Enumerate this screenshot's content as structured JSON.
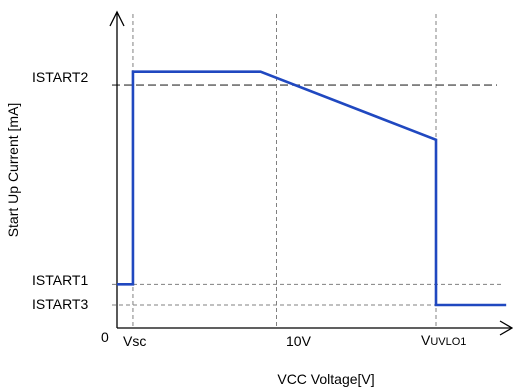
{
  "chart_data": {
    "type": "line",
    "xlabel": "VCC Voltage[V]",
    "ylabel": "Start Up Current [mA]",
    "x_ticks": [
      {
        "key": "origin",
        "label": "0"
      },
      {
        "key": "vsc",
        "label": "Vsc"
      },
      {
        "key": "v10",
        "label": "10V"
      },
      {
        "key": "vuvlo",
        "main": "V",
        "sub": "UVLO1"
      }
    ],
    "y_ticks": [
      {
        "key": "istart2",
        "label": "ISTART2"
      },
      {
        "key": "istart1",
        "label": "ISTART1"
      },
      {
        "key": "istart3",
        "label": "ISTART3"
      }
    ],
    "x_positions": {
      "vsc": 0.05,
      "v10": 0.5,
      "vuvlo": 1.0,
      "end": 1.22
    },
    "y_levels": {
      "istart1": 0.085,
      "istart2": 0.905,
      "istart3": 0.0,
      "peak": 0.96,
      "at_vuvlo": 0.68
    },
    "series": [
      {
        "color": "#2048c0",
        "points": [
          {
            "x": 0.0,
            "y": 0.085
          },
          {
            "x": 0.05,
            "y": 0.085
          },
          {
            "x": 0.05,
            "y": 0.96
          },
          {
            "x": 0.45,
            "y": 0.96
          },
          {
            "x": 1.0,
            "y": 0.68
          },
          {
            "x": 1.0,
            "y": 0.0
          },
          {
            "x": 1.22,
            "y": 0.0
          }
        ]
      }
    ],
    "grid": "dashed reference lines",
    "colors": {
      "series": "#2048c0",
      "axis": "#000000",
      "guide": "#808080"
    }
  }
}
